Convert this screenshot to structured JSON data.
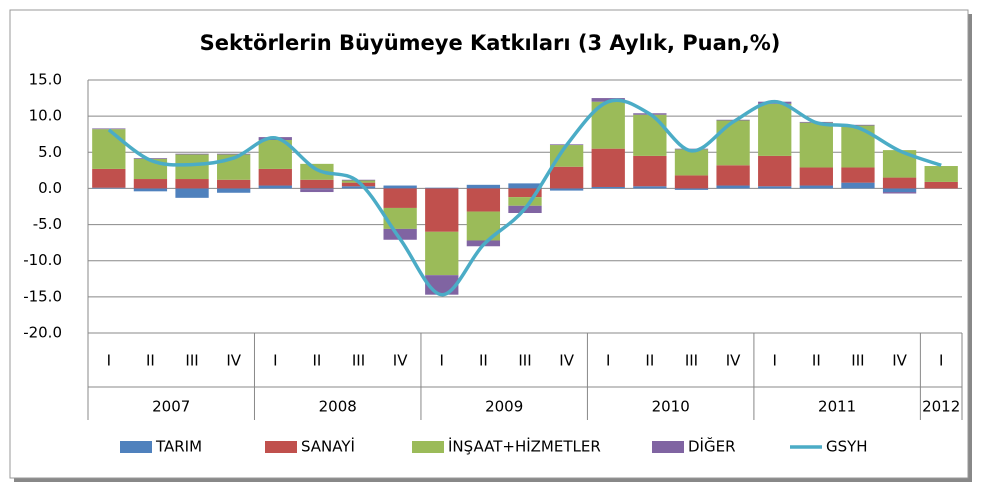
{
  "chart_data": {
    "type": "stacked_bar_line",
    "title": "Sektörlerin Büyümeye Katkıları (3 Aylık, Puan,%)",
    "categories": [
      "I",
      "II",
      "III",
      "IV",
      "I",
      "II",
      "III",
      "IV",
      "I",
      "II",
      "III",
      "IV",
      "I",
      "II",
      "III",
      "IV",
      "I",
      "II",
      "III",
      "IV",
      "I"
    ],
    "years": [
      "2007",
      null,
      null,
      null,
      "2008",
      null,
      null,
      null,
      "2009",
      null,
      null,
      null,
      "2010",
      null,
      null,
      null,
      "2011",
      null,
      null,
      null,
      "2012"
    ],
    "series": [
      {
        "name": "TARIM",
        "color": "#4f81bd",
        "kind": "bar",
        "values": [
          0.1,
          -0.4,
          -1.3,
          -0.6,
          0.4,
          -0.1,
          0.3,
          0.4,
          0.1,
          0.5,
          0.7,
          -0.3,
          0.2,
          0.3,
          -0.2,
          0.4,
          0.3,
          0.4,
          0.8,
          -0.5,
          0.0
        ]
      },
      {
        "name": "SANAYİ",
        "color": "#c0504d",
        "kind": "bar",
        "values": [
          2.6,
          1.3,
          1.3,
          1.2,
          2.3,
          1.2,
          0.5,
          -2.7,
          -6.0,
          -3.2,
          -1.2,
          3.0,
          5.3,
          4.2,
          1.8,
          2.8,
          4.2,
          2.5,
          2.1,
          1.5,
          0.9
        ]
      },
      {
        "name": "İNŞAAT+HİZMETLER",
        "color": "#9bbb59",
        "kind": "bar",
        "values": [
          5.5,
          2.8,
          3.4,
          3.5,
          4.0,
          2.2,
          0.3,
          -2.9,
          -6.0,
          -4.0,
          -1.2,
          3.0,
          6.5,
          5.7,
          3.6,
          6.2,
          7.2,
          6.2,
          5.8,
          3.8,
          2.2
        ]
      },
      {
        "name": "DİĞER",
        "color": "#8064a2",
        "kind": "bar",
        "values": [
          0.1,
          0.1,
          0.1,
          0.1,
          0.4,
          -0.4,
          0.1,
          -1.5,
          -2.7,
          -0.8,
          -1.0,
          0.1,
          0.5,
          0.2,
          0.1,
          0.1,
          0.3,
          0.1,
          0.1,
          -0.2,
          0.0
        ]
      },
      {
        "name": "GSYH",
        "color": "#4bacc6",
        "kind": "line",
        "values": [
          8.1,
          3.9,
          3.3,
          4.2,
          7.0,
          2.6,
          0.9,
          -7.0,
          -14.7,
          -7.8,
          -2.8,
          6.0,
          12.0,
          10.3,
          5.2,
          9.2,
          12.0,
          9.1,
          8.4,
          5.2,
          3.2
        ]
      }
    ],
    "ylim": [
      -20,
      15
    ],
    "yticks": [
      {
        "value": -20,
        "label": "-20.0"
      },
      {
        "value": -15,
        "label": "-15.0"
      },
      {
        "value": -10,
        "label": "-10.0"
      },
      {
        "value": -5,
        "label": "-5.0"
      },
      {
        "value": 0,
        "label": "0.0"
      },
      {
        "value": 5,
        "label": "5.0"
      },
      {
        "value": 10,
        "label": "10.0"
      },
      {
        "value": 15,
        "label": "15.0"
      }
    ],
    "grid": true,
    "legend": "bottom"
  }
}
